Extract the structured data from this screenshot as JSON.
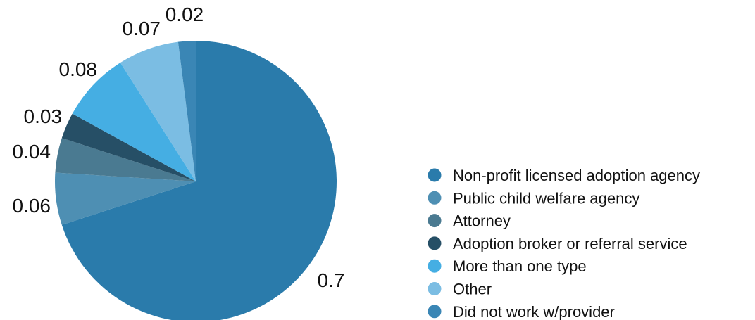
{
  "chart_data": {
    "type": "pie",
    "categories": [
      "Non-profit licensed adoption agency",
      "Public child welfare agency",
      "Attorney",
      "Adoption broker or referral service",
      "More than one type",
      "Other",
      "Did not work w/provider"
    ],
    "values": [
      0.7,
      0.06,
      0.04,
      0.03,
      0.08,
      0.07,
      0.02
    ],
    "data_labels": [
      "0.7",
      "0.06",
      "0.04",
      "0.03",
      "0.08",
      "0.07",
      "0.02"
    ],
    "colors": [
      "#2a7bab",
      "#4e8fb3",
      "#4a7a91",
      "#264f66",
      "#45aee3",
      "#7bbde3",
      "#3a86b5"
    ],
    "start_angle_deg": 0,
    "direction": "clockwise",
    "legend_position": "right",
    "title": ""
  }
}
